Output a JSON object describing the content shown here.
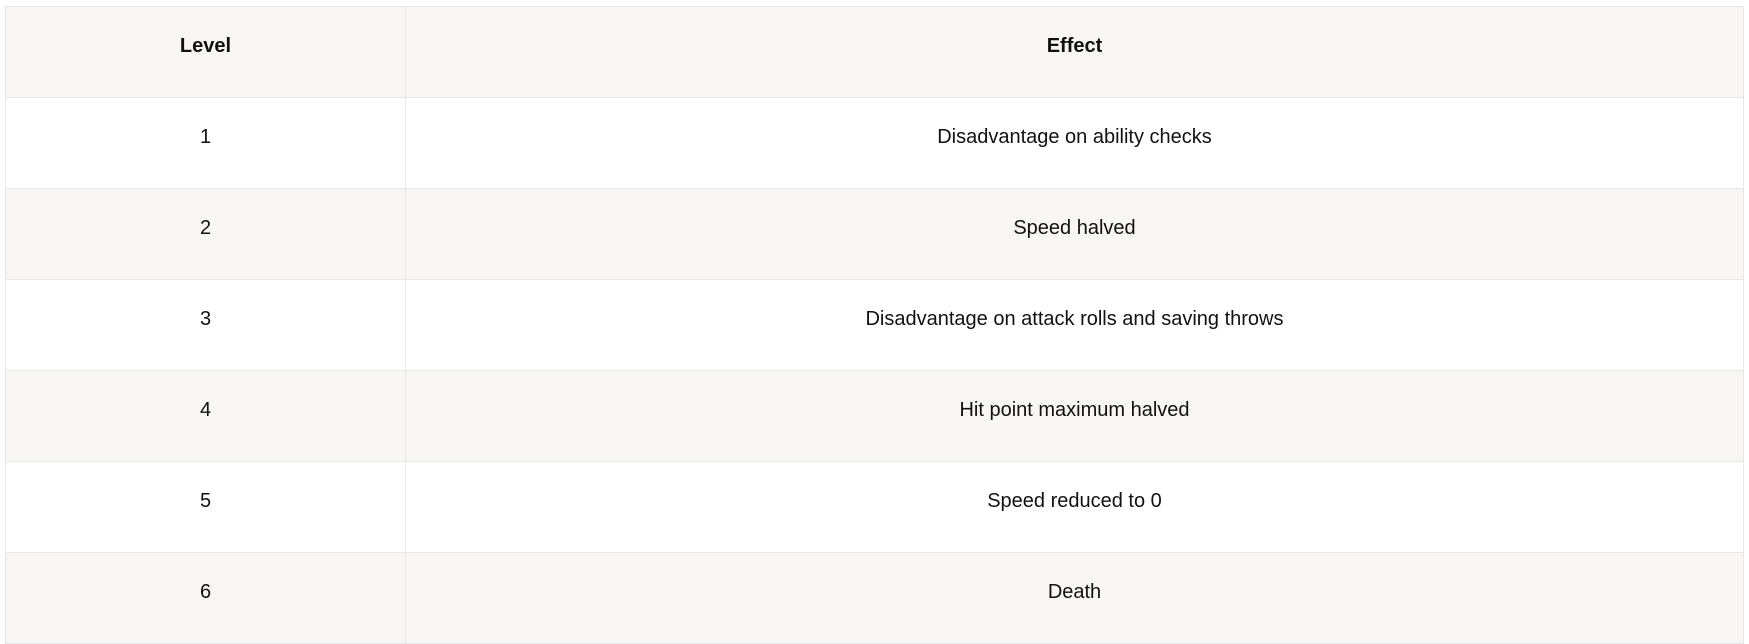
{
  "table": {
    "headers": [
      "Level",
      "Effect"
    ],
    "rows": [
      {
        "level": "1",
        "effect": "Disadvantage on ability checks"
      },
      {
        "level": "2",
        "effect": "Speed halved"
      },
      {
        "level": "3",
        "effect": "Disadvantage on attack rolls and saving throws"
      },
      {
        "level": "4",
        "effect": "Hit point maximum halved"
      },
      {
        "level": "5",
        "effect": "Speed reduced to 0"
      },
      {
        "level": "6",
        "effect": "Death"
      }
    ]
  },
  "colors": {
    "header_bg": "#f7f6f4",
    "stripe_bg": "#f7f6f4",
    "border": "#e6e6e6",
    "text": "#111111"
  }
}
